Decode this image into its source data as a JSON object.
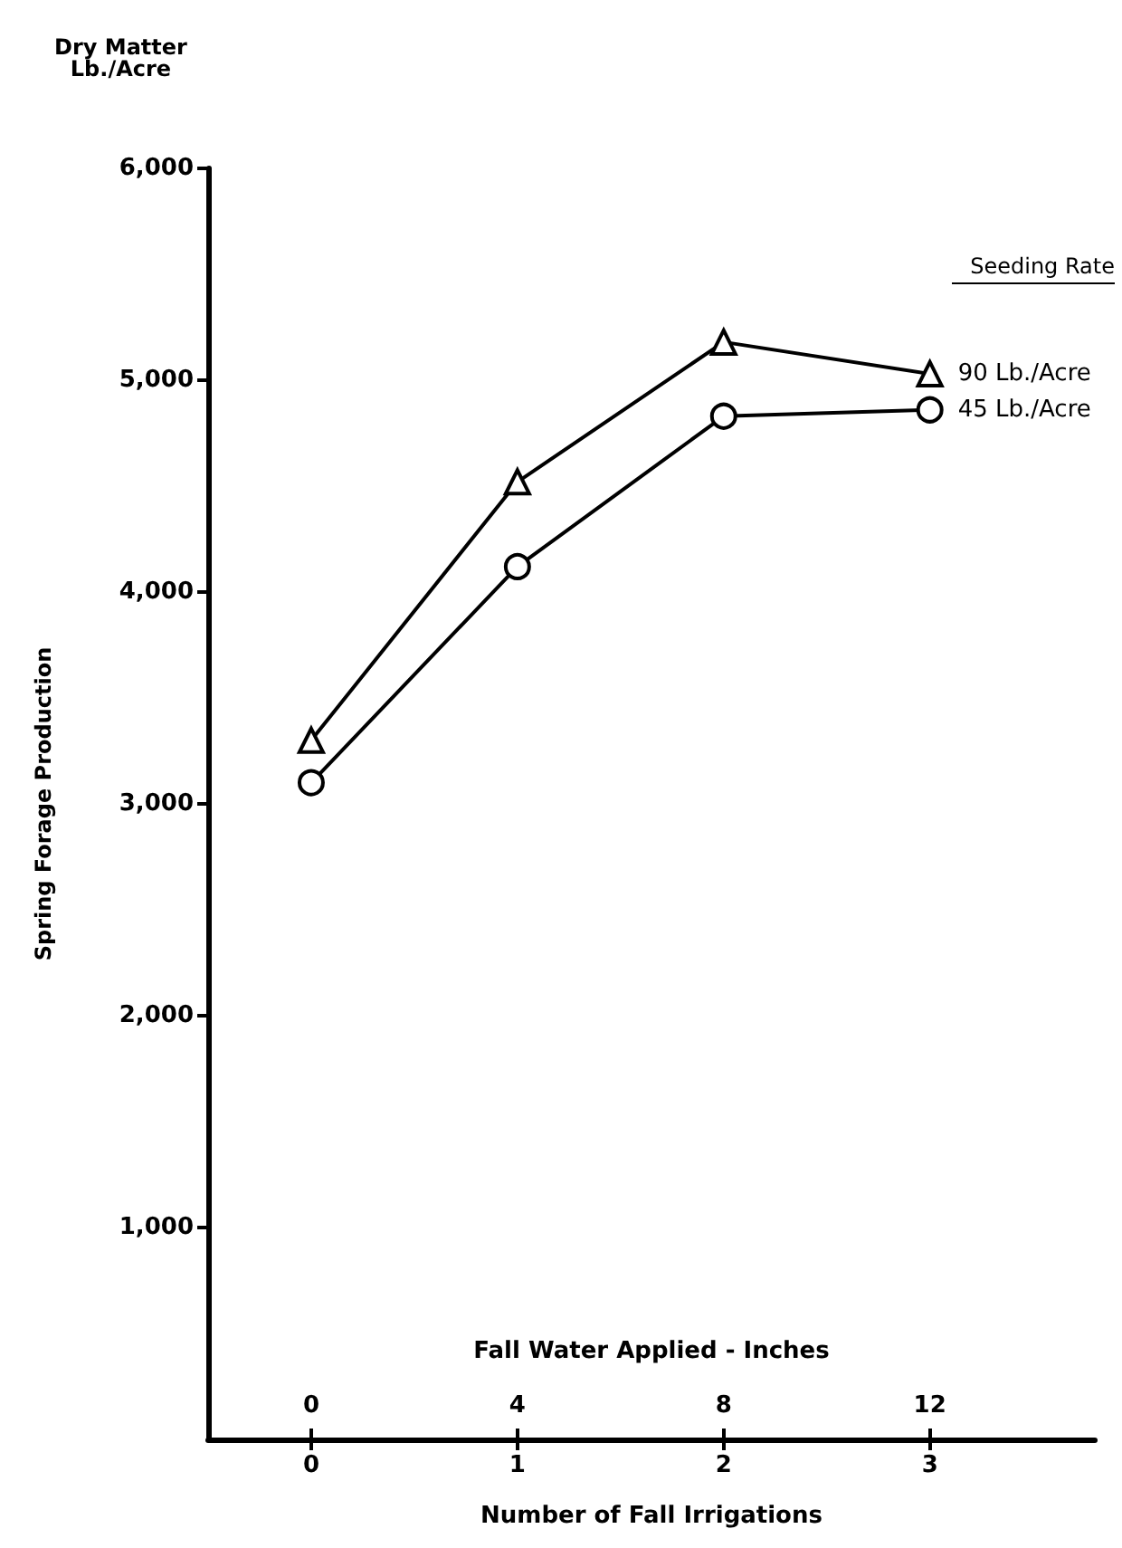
{
  "chart_data": {
    "type": "line",
    "xlabel": "Number of Fall Irrigations",
    "ylabel": "Spring Forage Production",
    "x2label": "Fall Water Applied - Inches",
    "legend_title": "Seeding Rate",
    "annotations": [
      "Dry Matter\nLb./Acre"
    ],
    "x": [
      0,
      1,
      2,
      3
    ],
    "xlim": [
      -0.5,
      3.8
    ],
    "xticks": [
      0,
      1,
      2,
      3
    ],
    "x2lim": [
      -2,
      15.2
    ],
    "x2ticks": [
      0,
      4,
      8,
      12
    ],
    "ylim": [
      0,
      6000
    ],
    "yticks": [
      {
        "value": 1000,
        "label": "1,000"
      },
      {
        "value": 2000,
        "label": "2,000"
      },
      {
        "value": 3000,
        "label": "3,000"
      },
      {
        "value": 4000,
        "label": "4,000"
      },
      {
        "value": 5000,
        "label": "5,000"
      },
      {
        "value": 6000,
        "label": "6,000"
      }
    ],
    "grid": false,
    "line_style": "solid",
    "series": [
      {
        "name": "90 Lb./Acre",
        "color": "#000000",
        "marker": "triangle",
        "values": [
          3300,
          4520,
          5180,
          5030
        ]
      },
      {
        "name": "45 Lb./Acre",
        "color": "#000000",
        "marker": "circle",
        "values": [
          3100,
          4120,
          4830,
          4860
        ]
      }
    ]
  }
}
